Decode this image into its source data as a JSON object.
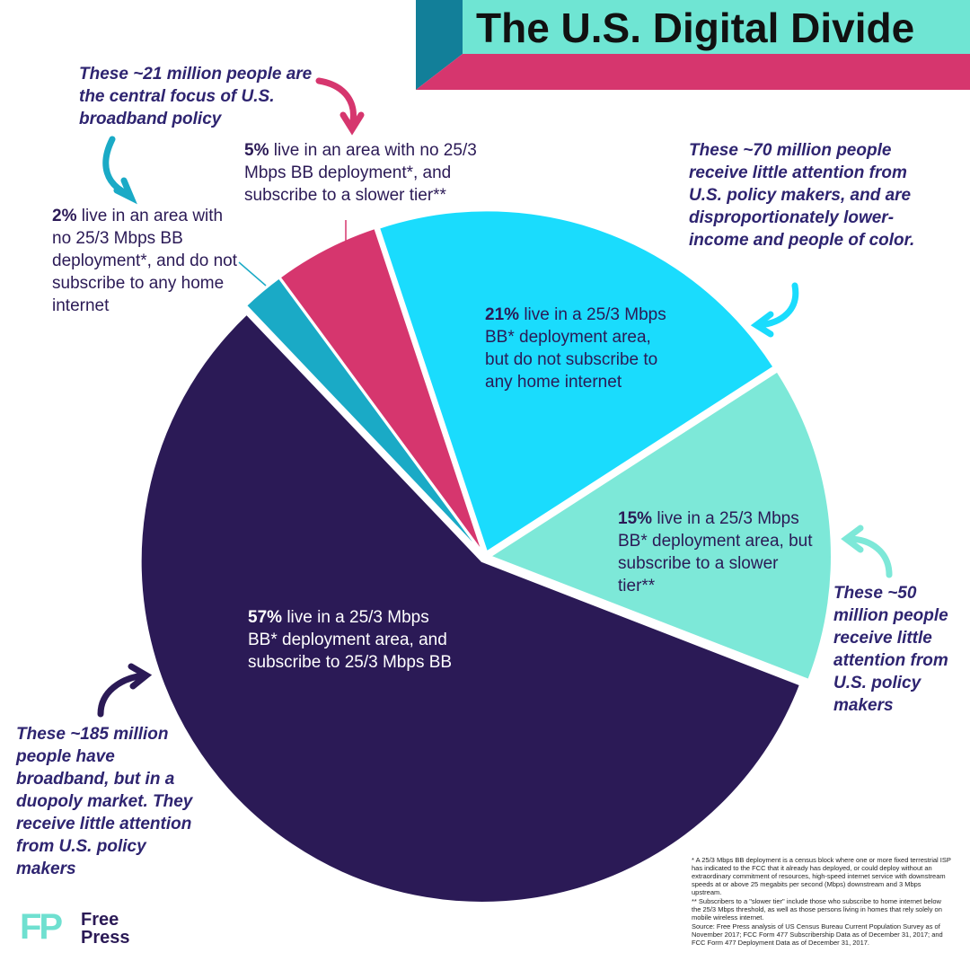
{
  "chart_data": {
    "type": "pie",
    "title": "The U.S. Digital Divide",
    "categories": [
      "live in a 25/3 Mbps BB* deployment area, but do not subscribe to any home internet",
      "live in a 25/3 Mbps BB* deployment area, but subscribe to a slower tier**",
      "live in a 25/3 Mbps BB* deployment area, and subscribe to 25/3 Mbps BB",
      "live in an area with no 25/3 Mbps BB deployment*, and do not subscribe to any home internet",
      "live in an area with no 25/3 Mbps BB deployment*, and subscribe to a slower tier**"
    ],
    "values": [
      21,
      15,
      57,
      2,
      5
    ],
    "value_labels": [
      "21%",
      "15%",
      "57%",
      "2%",
      "5%"
    ],
    "colors": [
      "#1adcfd",
      "#7de8d8",
      "#2b1a56",
      "#1aaac6",
      "#d6366e"
    ],
    "annotations": [
      "These ~70 million people receive little attention from U.S. policy makers, and are disproportionately lower-income and people of color.",
      "These ~50 million people receive little attention from U.S. policy makers",
      "These ~185 million people have broadband, but in a duopoly market. They receive little attention from U.S. policy makers",
      "These ~21 million people are the central focus of U.S. broadband policy"
    ],
    "footnotes": [
      "* A 25/3 Mbps BB deployment is a census block where one or more fixed terrestrial ISP has indicated to the FCC that it already has deployed, or could deploy without an extraordinary commitment of resources, high-speed internet service with downstream speeds at or above 25 megabits per second (Mbps) downstream and 3 Mbps upstream.",
      "** Subscribers to a \"slower tier\" include those who subscribe to home internet below the 25/3 Mbps threshold, as well as those persons living in homes that rely solely on mobile wireless internet.",
      "Source: Free Press analysis of US Census Bureau Current Population Survey as of November 2017; FCC Form 477 Subscribership Data as of December 31, 2017; and FCC Form 477 Deployment Data as of December 31, 2017."
    ],
    "logo": {
      "mark": "FP",
      "lines": [
        "Free",
        "Press"
      ]
    }
  }
}
